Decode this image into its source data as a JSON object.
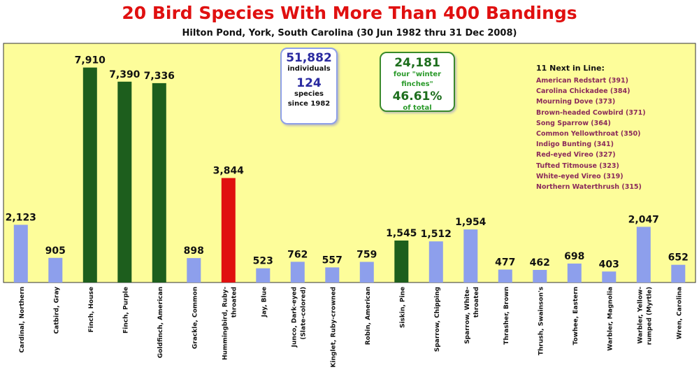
{
  "chart_data": {
    "type": "bar",
    "title": "20 Bird Species With More Than 400 Bandings",
    "subtitle": "Hilton Pond, York, South Carolina (30 Jun 1982 thru 31 Dec 2008)",
    "ylim": [
      0,
      8800
    ],
    "grid": false,
    "categories": [
      "Cardinal, Northern",
      "Catbird, Gray",
      "Finch, House",
      "Finch, Purple",
      "Goldfinch, American",
      "Grackle, Common",
      "Hummingbird, Ruby-throated",
      "Jay, Blue",
      "Junco, Dark-eyed (Slate-colored)",
      "Kinglet, Ruby-crowned",
      "Robin, American",
      "Siskin, Pine",
      "Sparrow, Chipping",
      "Sparrow, White-throated",
      "Thrasher, Brown",
      "Thrush, Swainson's",
      "Towhee, Eastern",
      "Warbler, Magnolia",
      "Warbler, Yellow-rumped (Myrtle)",
      "Wren, Carolina"
    ],
    "category_lines": [
      [
        "Cardinal, Northern"
      ],
      [
        "Catbird, Gray"
      ],
      [
        "Finch, House"
      ],
      [
        "Finch, Purple"
      ],
      [
        "Goldfinch, American"
      ],
      [
        "Grackle, Common"
      ],
      [
        "Hummingbird, Ruby-",
        "throated"
      ],
      [
        "Jay, Blue"
      ],
      [
        "Junco, Dark-eyed",
        "(Slate-colored)"
      ],
      [
        "Kinglet, Ruby-crowned"
      ],
      [
        "Robin, American"
      ],
      [
        "Siskin, Pine"
      ],
      [
        "Sparrow, Chipping"
      ],
      [
        "Sparrow, White-",
        "throated"
      ],
      [
        "Thrasher, Brown"
      ],
      [
        "Thrush, Swainson's"
      ],
      [
        "Towhee, Eastern"
      ],
      [
        "Warbler, Magnolia"
      ],
      [
        "Warbler, Yellow-",
        "rumped (Myrtle)"
      ],
      [
        "Wren, Carolina"
      ]
    ],
    "values": [
      2123,
      905,
      7910,
      7390,
      7336,
      898,
      3844,
      523,
      762,
      557,
      759,
      1545,
      1512,
      1954,
      477,
      462,
      698,
      403,
      2047,
      652
    ],
    "value_labels": [
      "2,123",
      "905",
      "7,910",
      "7,390",
      "7,336",
      "898",
      "3,844",
      "523",
      "762",
      "557",
      "759",
      "1,545",
      "1,512",
      "1,954",
      "477",
      "462",
      "698",
      "403",
      "2,047",
      "652"
    ],
    "bar_colors": [
      "#8d9fec",
      "#8d9fec",
      "#1d5e1d",
      "#1d5e1d",
      "#1d5e1d",
      "#8d9fec",
      "#e01010",
      "#8d9fec",
      "#8d9fec",
      "#8d9fec",
      "#8d9fec",
      "#1d5e1d",
      "#8d9fec",
      "#8d9fec",
      "#8d9fec",
      "#8d9fec",
      "#8d9fec",
      "#8d9fec",
      "#8d9fec",
      "#8d9fec"
    ],
    "colors": {
      "plot_bg": "#fdfd9a",
      "title": "#e01010"
    }
  },
  "totals_box": {
    "individuals_value": "51,882",
    "individuals_label": "individuals",
    "species_value": "124",
    "species_label": "species",
    "since_label": "since 1982"
  },
  "finches_box": {
    "count": "24,181",
    "label": "four \"winter finches\"",
    "percent": "46.61%",
    "of_total": "of total"
  },
  "next_in_line": {
    "heading": "11 Next in Line:",
    "items": [
      "American Redstart (391)",
      "Carolina Chickadee (384)",
      "Mourning Dove (373)",
      "Brown-headed Cowbird (371)",
      "Song Sparrow (364)",
      "Common Yellowthroat (350)",
      "Indigo Bunting (341)",
      "Red-eyed Vireo (327)",
      "Tufted Titmouse (323)",
      "White-eyed Vireo (319)",
      "Northern Waterthrush (315)"
    ]
  }
}
